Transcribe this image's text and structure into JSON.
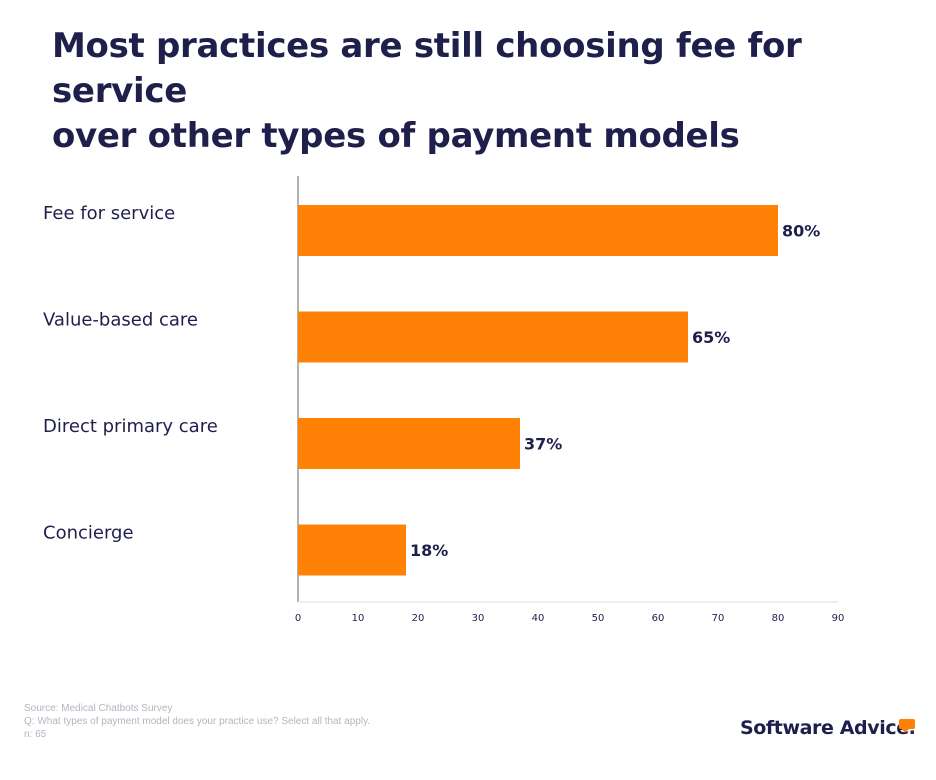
{
  "title_lines": [
    "Most practices are still choosing fee for service",
    "over other types of payment models"
  ],
  "chart_data": {
    "type": "bar",
    "orientation": "horizontal",
    "title": "Most practices are still choosing fee for service over other types of payment models",
    "categories": [
      "Fee for service",
      "Value-based care",
      "Direct primary care",
      "Concierge"
    ],
    "values": [
      80,
      65,
      37,
      18
    ],
    "value_labels": [
      "80%",
      "65%",
      "37%",
      "18%"
    ],
    "xlim": [
      0,
      90
    ],
    "xticks": [
      0,
      10,
      20,
      30,
      40,
      50,
      60,
      70,
      80,
      90
    ],
    "xlabel": "",
    "ylabel": "",
    "grid": false,
    "bar_color": "#ff8206"
  },
  "footer": {
    "source": "Source: Medical Chatbots Survey",
    "question": "Q: What types of payment model does your practice use? Select all that apply.",
    "n": "n: 65"
  },
  "brand": {
    "name": "Software Advice.",
    "accent_color": "#ff8206"
  },
  "colors": {
    "text": "#1f1f4c",
    "axis": "#666666",
    "footer_text": "#b4b4c0"
  }
}
